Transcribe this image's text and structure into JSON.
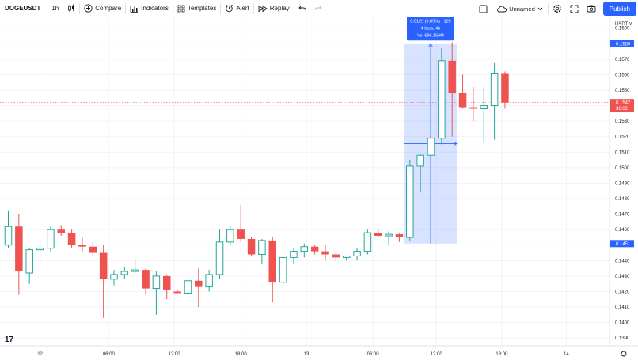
{
  "toolbar": {
    "symbol": "DOGEUSDT",
    "interval": "1h",
    "compare_label": "Compare",
    "indicators_label": "Indicators",
    "templates_label": "Templates",
    "alert_label": "Alert",
    "replay_label": "Replay",
    "layout_name": "Unnamed",
    "publish_label": "Publish"
  },
  "price_axis": {
    "currency_label": "USDT ˅",
    "ticks": [
      "0.1590",
      "0.1580",
      "0.1570",
      "0.1560",
      "0.1550",
      "0.1540",
      "0.1530",
      "0.1520",
      "0.1510",
      "0.1500",
      "0.1490",
      "0.1480",
      "0.1470",
      "0.1460",
      "0.1450",
      "0.1440",
      "0.1430",
      "0.1420",
      "0.1410",
      "0.1400",
      "0.1390"
    ],
    "last_price": "0.1542",
    "countdown": "36:02",
    "range_high_label": "0.1580",
    "range_low_label": "0.1451"
  },
  "time_axis": {
    "ticks": [
      "12",
      "06:00",
      "12:00",
      "18:00",
      "13",
      "06:00",
      "12:00",
      "18:00",
      "14"
    ]
  },
  "measure_tooltip": {
    "line1": "0.0129 (8.89%) , 129",
    "line2": "4 bars, 4h",
    "line3": "Vol 696.156M"
  },
  "colors": {
    "up": "#26a69a",
    "down": "#ef5350",
    "selection": "#2962ff",
    "publish": "#2962ff"
  },
  "chart_data": {
    "type": "candlestick",
    "symbol": "DOGEUSDT",
    "interval": "1h",
    "ylim": [
      0.1385,
      0.1597
    ],
    "candles": [
      {
        "o": 0.145,
        "h": 0.1472,
        "l": 0.1448,
        "c": 0.1462
      },
      {
        "o": 0.1462,
        "h": 0.147,
        "l": 0.1418,
        "c": 0.1433
      },
      {
        "o": 0.1432,
        "h": 0.1448,
        "l": 0.1425,
        "c": 0.1447
      },
      {
        "o": 0.1447,
        "h": 0.1452,
        "l": 0.144,
        "c": 0.1448
      },
      {
        "o": 0.1448,
        "h": 0.1462,
        "l": 0.1446,
        "c": 0.146
      },
      {
        "o": 0.146,
        "h": 0.1463,
        "l": 0.1456,
        "c": 0.1458
      },
      {
        "o": 0.1458,
        "h": 0.146,
        "l": 0.1448,
        "c": 0.145
      },
      {
        "o": 0.145,
        "h": 0.1455,
        "l": 0.1446,
        "c": 0.1449
      },
      {
        "o": 0.1449,
        "h": 0.1452,
        "l": 0.1443,
        "c": 0.1445
      },
      {
        "o": 0.1445,
        "h": 0.145,
        "l": 0.1403,
        "c": 0.1428
      },
      {
        "o": 0.1428,
        "h": 0.1434,
        "l": 0.1424,
        "c": 0.1431
      },
      {
        "o": 0.1431,
        "h": 0.1436,
        "l": 0.1428,
        "c": 0.1433
      },
      {
        "o": 0.1433,
        "h": 0.144,
        "l": 0.1432,
        "c": 0.1434
      },
      {
        "o": 0.1434,
        "h": 0.1435,
        "l": 0.1418,
        "c": 0.1422
      },
      {
        "o": 0.1422,
        "h": 0.1433,
        "l": 0.1405,
        "c": 0.143
      },
      {
        "o": 0.143,
        "h": 0.1431,
        "l": 0.1415,
        "c": 0.1421
      },
      {
        "o": 0.142,
        "h": 0.1421,
        "l": 0.1419,
        "c": 0.1419
      },
      {
        "o": 0.1419,
        "h": 0.1428,
        "l": 0.1416,
        "c": 0.1427
      },
      {
        "o": 0.1427,
        "h": 0.1435,
        "l": 0.141,
        "c": 0.1423
      },
      {
        "o": 0.1423,
        "h": 0.1434,
        "l": 0.142,
        "c": 0.1431
      },
      {
        "o": 0.1431,
        "h": 0.146,
        "l": 0.1428,
        "c": 0.1452
      },
      {
        "o": 0.1452,
        "h": 0.1462,
        "l": 0.145,
        "c": 0.146
      },
      {
        "o": 0.146,
        "h": 0.1476,
        "l": 0.1452,
        "c": 0.1454
      },
      {
        "o": 0.1454,
        "h": 0.1455,
        "l": 0.1443,
        "c": 0.1444
      },
      {
        "o": 0.1444,
        "h": 0.1454,
        "l": 0.1438,
        "c": 0.1453
      },
      {
        "o": 0.1453,
        "h": 0.1455,
        "l": 0.1413,
        "c": 0.1426
      },
      {
        "o": 0.1426,
        "h": 0.1443,
        "l": 0.1423,
        "c": 0.1442
      },
      {
        "o": 0.1442,
        "h": 0.1448,
        "l": 0.1438,
        "c": 0.1446
      },
      {
        "o": 0.1446,
        "h": 0.1451,
        "l": 0.1442,
        "c": 0.1449
      },
      {
        "o": 0.1449,
        "h": 0.145,
        "l": 0.1444,
        "c": 0.1446
      },
      {
        "o": 0.1446,
        "h": 0.145,
        "l": 0.144,
        "c": 0.1444
      },
      {
        "o": 0.1444,
        "h": 0.1445,
        "l": 0.144,
        "c": 0.1442
      },
      {
        "o": 0.1442,
        "h": 0.1443,
        "l": 0.144,
        "c": 0.1443
      },
      {
        "o": 0.1443,
        "h": 0.1448,
        "l": 0.144,
        "c": 0.1446
      },
      {
        "o": 0.1446,
        "h": 0.146,
        "l": 0.1444,
        "c": 0.1458
      },
      {
        "o": 0.1458,
        "h": 0.146,
        "l": 0.1455,
        "c": 0.1456
      },
      {
        "o": 0.1456,
        "h": 0.1459,
        "l": 0.145,
        "c": 0.1457
      },
      {
        "o": 0.1457,
        "h": 0.1458,
        "l": 0.1452,
        "c": 0.1455
      },
      {
        "o": 0.1455,
        "h": 0.1505,
        "l": 0.1453,
        "c": 0.1501
      },
      {
        "o": 0.1501,
        "h": 0.1509,
        "l": 0.1484,
        "c": 0.1508
      },
      {
        "o": 0.1508,
        "h": 0.158,
        "l": 0.1451,
        "c": 0.1519
      },
      {
        "o": 0.1519,
        "h": 0.1577,
        "l": 0.1515,
        "c": 0.1569
      },
      {
        "o": 0.1569,
        "h": 0.1581,
        "l": 0.152,
        "c": 0.1548
      },
      {
        "o": 0.1548,
        "h": 0.156,
        "l": 0.1538,
        "c": 0.1539
      },
      {
        "o": 0.1539,
        "h": 0.1552,
        "l": 0.153,
        "c": 0.1538
      },
      {
        "o": 0.1538,
        "h": 0.1552,
        "l": 0.1516,
        "c": 0.154
      },
      {
        "o": 0.154,
        "h": 0.1568,
        "l": 0.1518,
        "c": 0.1561
      },
      {
        "o": 0.1561,
        "h": 0.1562,
        "l": 0.1538,
        "c": 0.1542
      }
    ],
    "measure_range": {
      "start_index": 38,
      "end_index": 42,
      "high": 0.158,
      "low": 0.1451
    }
  }
}
